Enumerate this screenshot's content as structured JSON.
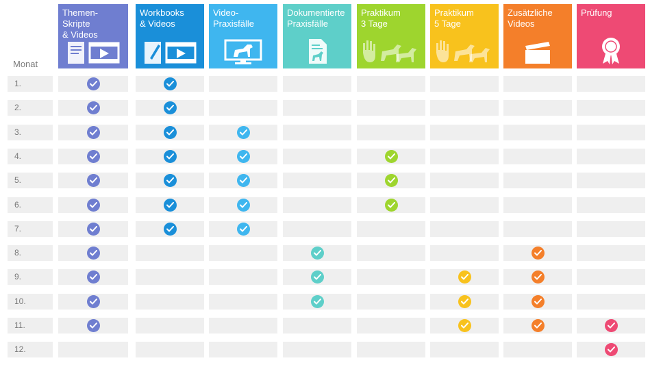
{
  "month_header": "Monat",
  "columns": [
    {
      "title": "Themen-Skripte\n& Videos",
      "color": "#6f7ed0",
      "icon": "document-video-icon"
    },
    {
      "title": "Workbooks\n& Videos",
      "color": "#1a8fd9",
      "icon": "workbook-video-icon"
    },
    {
      "title": "Video-\nPraxisfälle",
      "color": "#3fb6ef",
      "icon": "monitor-dog-icon"
    },
    {
      "title": "Dokumentierte\nPraxisfälle",
      "color": "#5ecfc9",
      "icon": "document-horse-icon"
    },
    {
      "title": "Praktikum\n3 Tage",
      "color": "#9ed52e",
      "icon": "hand-animals-icon"
    },
    {
      "title": "Praktikum\n5 Tage",
      "color": "#f8c21d",
      "icon": "hand-animals-icon"
    },
    {
      "title": "Zusätzliche\nVideos",
      "color": "#f47f2a",
      "icon": "clapperboard-icon"
    },
    {
      "title": "Prüfung",
      "color": "#ee4a74",
      "icon": "award-rosette-icon"
    }
  ],
  "months": [
    "1.",
    "2.",
    "3.",
    "4.",
    "5.",
    "6.",
    "7.",
    "8.",
    "9.",
    "10.",
    "11.",
    "12."
  ],
  "checks": [
    [
      1,
      1,
      0,
      0,
      0,
      0,
      0,
      0
    ],
    [
      1,
      1,
      0,
      0,
      0,
      0,
      0,
      0
    ],
    [
      1,
      1,
      1,
      0,
      0,
      0,
      0,
      0
    ],
    [
      1,
      1,
      1,
      0,
      1,
      0,
      0,
      0
    ],
    [
      1,
      1,
      1,
      0,
      1,
      0,
      0,
      0
    ],
    [
      1,
      1,
      1,
      0,
      1,
      0,
      0,
      0
    ],
    [
      1,
      1,
      1,
      0,
      0,
      0,
      0,
      0
    ],
    [
      1,
      0,
      0,
      1,
      0,
      0,
      1,
      0
    ],
    [
      1,
      0,
      0,
      1,
      0,
      1,
      1,
      0
    ],
    [
      1,
      0,
      0,
      1,
      0,
      1,
      1,
      0
    ],
    [
      1,
      0,
      0,
      0,
      0,
      1,
      1,
      1
    ],
    [
      0,
      0,
      0,
      0,
      0,
      0,
      0,
      1
    ]
  ]
}
